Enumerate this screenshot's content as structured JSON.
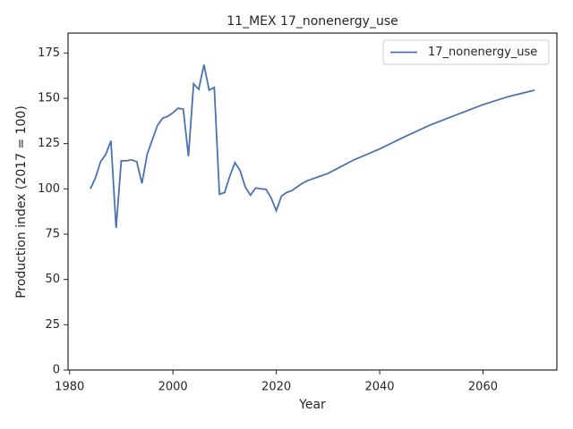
{
  "chart_data": {
    "type": "line",
    "title": "11_MEX 17_nonenergy_use",
    "xlabel": "Year",
    "ylabel": "Production index (2017 = 100)",
    "x": [
      1984,
      1985,
      1986,
      1987,
      1988,
      1989,
      1990,
      1991,
      1992,
      1993,
      1994,
      1995,
      1996,
      1997,
      1998,
      1999,
      2000,
      2001,
      2002,
      2003,
      2004,
      2005,
      2006,
      2007,
      2008,
      2009,
      2010,
      2011,
      2012,
      2013,
      2014,
      2015,
      2016,
      2017,
      2018,
      2019,
      2020,
      2021,
      2022,
      2023,
      2024,
      2025,
      2026,
      2027,
      2028,
      2029,
      2030,
      2035,
      2040,
      2045,
      2050,
      2055,
      2060,
      2065,
      2070
    ],
    "series": [
      {
        "name": "17_nonenergy_use",
        "color": "#4c72b0",
        "values": [
          100,
          106,
          115,
          119,
          126.5,
          78.5,
          115.5,
          115.5,
          116,
          115,
          103,
          119,
          127,
          135,
          139,
          140,
          142,
          144.5,
          144,
          118,
          158,
          155,
          168.5,
          154.5,
          156,
          97,
          98,
          107,
          114.5,
          110,
          101,
          96.5,
          100.5,
          100,
          99.8,
          95,
          88,
          96,
          98,
          99,
          101,
          103,
          104.5,
          105.5,
          106.5,
          107.5,
          108.5,
          116,
          122,
          129,
          135.5,
          141,
          146.5,
          151,
          154.5
        ]
      }
    ],
    "xlim": [
      1979.7,
      2074.3
    ],
    "ylim": [
      0,
      186
    ],
    "xticks": [
      1980,
      2000,
      2020,
      2040,
      2060
    ],
    "yticks": [
      0,
      25,
      50,
      75,
      100,
      125,
      150,
      175
    ],
    "legend": "upper right"
  }
}
